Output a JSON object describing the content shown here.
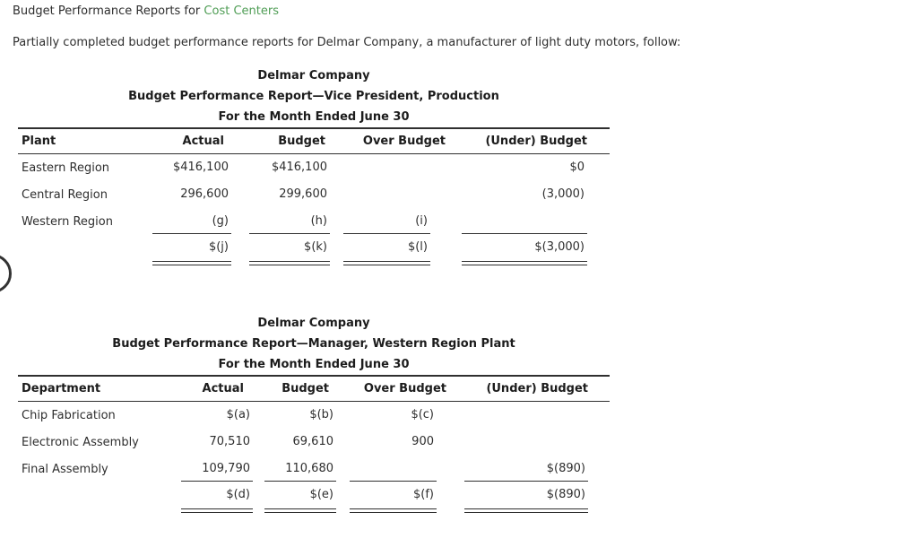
{
  "page": {
    "heading_prefix": "Budget Performance Reports for ",
    "heading_link": "Cost Centers",
    "intro": "Partially completed budget performance reports for Delmar Company, a manufacturer of light duty motors, follow:"
  },
  "colors": {
    "accent_green": "#4f9d55",
    "text": "#2e2e2e",
    "rule": "#2f2f2f"
  },
  "report1": {
    "title": "Delmar Company",
    "subtitle": "Budget Performance Report—Vice President, Production",
    "period": "For the Month Ended June 30",
    "columns": [
      "Plant",
      "Actual",
      "Budget",
      "Over Budget",
      "(Under) Budget"
    ],
    "rows": [
      {
        "label": "Eastern Region",
        "actual": "$416,100",
        "budget": "$416,100",
        "over": "",
        "under": "$0"
      },
      {
        "label": "Central Region",
        "actual": "296,600",
        "budget": "299,600",
        "over": "",
        "under": "(3,000)"
      },
      {
        "label": "Western Region",
        "actual": "(g)",
        "budget": "(h)",
        "over": "(i)",
        "under": ""
      }
    ],
    "total": {
      "label": "",
      "actual": "$(j)",
      "budget": "$(k)",
      "over": "$(l)",
      "under": "$(3,000)"
    }
  },
  "report2": {
    "title": "Delmar Company",
    "subtitle": "Budget Performance Report—Manager, Western Region Plant",
    "period": "For the Month Ended June 30",
    "columns": [
      "Department",
      "Actual",
      "Budget",
      "Over Budget",
      "(Under) Budget"
    ],
    "rows": [
      {
        "label": "Chip Fabrication",
        "actual": "$(a)",
        "budget": "$(b)",
        "over": "$(c)",
        "under": ""
      },
      {
        "label": "Electronic Assembly",
        "actual": "70,510",
        "budget": "69,610",
        "over": "900",
        "under": ""
      },
      {
        "label": "Final Assembly",
        "actual": "109,790",
        "budget": "110,680",
        "over": "",
        "under": "$(890)"
      }
    ],
    "total": {
      "label": "",
      "actual": "$(d)",
      "budget": "$(e)",
      "over": "$(f)",
      "under": "$(890)"
    }
  }
}
